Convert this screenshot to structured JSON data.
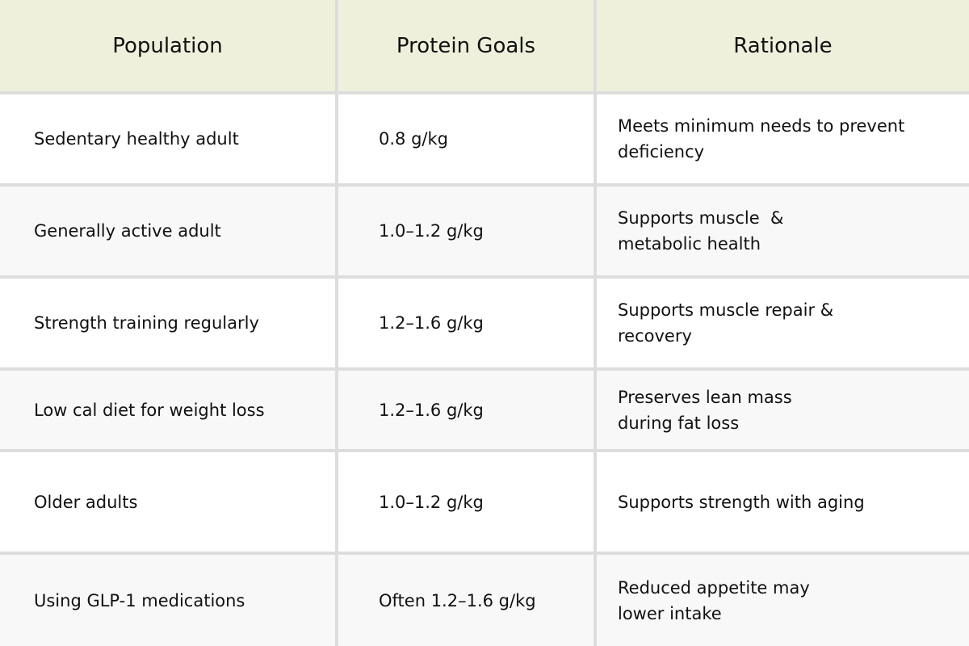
{
  "table": {
    "header": [
      "Population",
      "Protein Goals",
      "Rationale"
    ],
    "rows": [
      [
        "Sedentary healthy adult",
        "0.8 g/kg",
        [
          "Meets minimum needs to prevent",
          "deficiency"
        ]
      ],
      [
        "Generally active adult",
        "1.0–1.2 g/kg",
        [
          "Supports muscle  &",
          "metabolic health"
        ]
      ],
      [
        "Strength training regularly",
        "1.2–1.6 g/kg",
        [
          "Supports muscle repair &",
          "recovery"
        ]
      ],
      [
        "Low cal diet for weight loss",
        "1.2–1.6 g/kg",
        [
          "Preserves lean mass",
          "during fat loss"
        ]
      ],
      [
        "Older adults",
        "1.0–1.2 g/kg",
        [
          "Supports strength with aging"
        ]
      ],
      [
        "Using GLP-1 medications",
        "Often 1.2–1.6 g/kg",
        [
          "Reduced appetite may",
          "lower intake"
        ]
      ]
    ]
  }
}
